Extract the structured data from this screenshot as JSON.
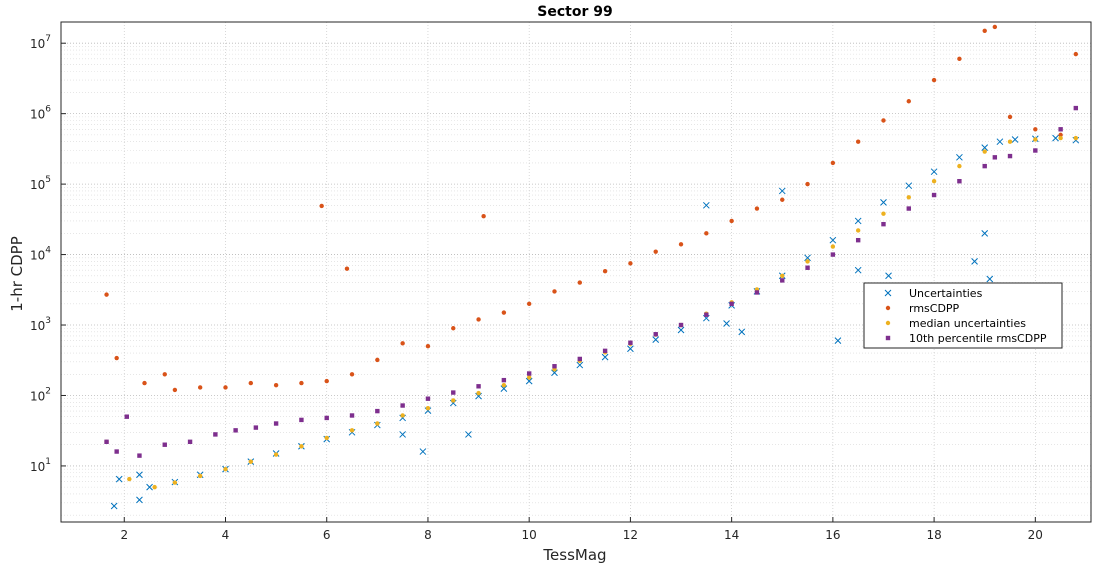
{
  "chart_data": {
    "type": "scatter",
    "title": "Sector 99",
    "xlabel": "TessMag",
    "ylabel": "1-hr CDPP",
    "xlim": [
      0.75,
      21.1
    ],
    "ylim": [
      1.6,
      20000000
    ],
    "yscale": "log",
    "grid": true,
    "minor_grid": true,
    "legend_position": "right",
    "x_ticks": [
      2,
      4,
      6,
      8,
      10,
      12,
      14,
      16,
      18,
      20
    ],
    "x_tick_labels": [
      "2",
      "4",
      "6",
      "8",
      "10",
      "12",
      "14",
      "16",
      "18",
      "20"
    ],
    "y_ticks": [
      10,
      100,
      1000,
      10000,
      100000,
      1000000,
      10000000
    ],
    "y_tick_labels": [
      {
        "base": "10",
        "exp": "1"
      },
      {
        "base": "10",
        "exp": "2"
      },
      {
        "base": "10",
        "exp": "3"
      },
      {
        "base": "10",
        "exp": "4"
      },
      {
        "base": "10",
        "exp": "5"
      },
      {
        "base": "10",
        "exp": "6"
      },
      {
        "base": "10",
        "exp": "7"
      }
    ],
    "series": [
      {
        "name": "Uncertainties",
        "marker": "x",
        "color": "#0072BD",
        "x": [
          1.8,
          1.9,
          2.3,
          2.5,
          3.0,
          3.5,
          4.0,
          4.5,
          5.0,
          5.5,
          6.0,
          6.5,
          7.0,
          7.5,
          8.0,
          8.5,
          9.0,
          9.5,
          10.0,
          10.5,
          11.0,
          11.5,
          12.0,
          12.5,
          13.0,
          13.5,
          14.0,
          14.5,
          15.0,
          15.5,
          16.0,
          16.5,
          17.0,
          17.5,
          18.0,
          18.5,
          19.0,
          19.3,
          19.6,
          20.0,
          20.4,
          20.8,
          2.3,
          7.5,
          7.9,
          8.8,
          13.9,
          14.2,
          16.1,
          16.5,
          17.1,
          18.8,
          19.0,
          19.1,
          13.5,
          15.0
        ],
        "y": [
          2.7,
          6.5,
          3.3,
          5.0,
          5.9,
          7.5,
          9.0,
          11.5,
          15,
          19,
          24,
          30,
          38,
          48,
          61,
          78,
          98,
          125,
          160,
          210,
          270,
          350,
          460,
          620,
          850,
          1250,
          1900,
          3000,
          5000,
          9000,
          16000,
          30000,
          55000,
          95000,
          150000,
          240000,
          330000,
          400000,
          430000,
          440000,
          450000,
          420000,
          7.5,
          28,
          16,
          28,
          1050,
          800,
          600,
          6000,
          5000,
          8000,
          20000,
          4500,
          50000,
          80000
        ]
      },
      {
        "name": "rmsCDPP",
        "marker": "dot",
        "color": "#D95319",
        "x": [
          1.65,
          1.85,
          2.4,
          2.8,
          3.0,
          3.5,
          4.0,
          4.5,
          5.0,
          5.5,
          5.9,
          6.0,
          6.4,
          6.5,
          7.0,
          7.5,
          8.0,
          8.5,
          9.0,
          9.1,
          9.5,
          10.0,
          10.5,
          11.0,
          11.5,
          12.0,
          12.5,
          13.0,
          13.5,
          14.0,
          14.5,
          15.0,
          15.5,
          16.0,
          16.5,
          17.0,
          17.5,
          18.0,
          18.5,
          19.0,
          19.2,
          19.5,
          20.0,
          20.5,
          20.8
        ],
        "y": [
          2700,
          340,
          150,
          200,
          120,
          130,
          130,
          150,
          140,
          150,
          49000,
          160,
          6300,
          200,
          320,
          550,
          500,
          900,
          1200,
          35000,
          1500,
          2000,
          3000,
          4000,
          5800,
          7500,
          11000,
          14000,
          20000,
          30000,
          45000,
          60000,
          100000,
          200000,
          400000,
          800000,
          1500000,
          3000000,
          6000000,
          15000000,
          17000000,
          900000,
          600000,
          500000,
          7000000
        ]
      },
      {
        "name": "median uncertainties",
        "marker": "dot",
        "color": "#EDB120",
        "x": [
          1.65,
          2.1,
          2.6,
          3.0,
          3.5,
          4.0,
          4.5,
          5.0,
          5.5,
          6.0,
          6.5,
          7.0,
          7.5,
          8.0,
          8.5,
          9.0,
          9.5,
          10.0,
          10.5,
          11.0,
          11.5,
          12.0,
          12.5,
          13.0,
          13.5,
          14.0,
          14.5,
          15.0,
          15.5,
          16.0,
          16.5,
          17.0,
          17.5,
          18.0,
          18.5,
          19.0,
          19.5,
          20.0,
          20.5,
          20.8
        ],
        "y": [
          22,
          6.5,
          5.0,
          5.8,
          7.2,
          9.0,
          11.5,
          14.5,
          19,
          25,
          32,
          40,
          52,
          66,
          85,
          108,
          140,
          180,
          235,
          310,
          410,
          540,
          730,
          1000,
          1450,
          2100,
          3200,
          5000,
          8000,
          13000,
          22000,
          38000,
          65000,
          110000,
          180000,
          290000,
          400000,
          430000,
          450000,
          450000
        ]
      },
      {
        "name": "10th percentile rmsCDPP",
        "marker": "square",
        "color": "#7E2F8E",
        "x": [
          1.65,
          1.85,
          2.05,
          2.3,
          2.8,
          3.3,
          3.8,
          4.2,
          4.6,
          5.0,
          5.5,
          6.0,
          6.5,
          7.0,
          7.5,
          8.0,
          8.5,
          9.0,
          9.5,
          10.0,
          10.5,
          11.0,
          11.5,
          12.0,
          12.5,
          13.0,
          13.5,
          14.0,
          14.5,
          15.0,
          15.5,
          16.0,
          16.5,
          17.0,
          17.5,
          18.0,
          18.5,
          19.0,
          19.2,
          19.5,
          20.0,
          20.5,
          20.8
        ],
        "y": [
          22,
          16,
          50,
          14,
          20,
          22,
          28,
          32,
          35,
          40,
          45,
          48,
          52,
          60,
          72,
          90,
          110,
          135,
          165,
          205,
          260,
          330,
          430,
          560,
          740,
          1000,
          1400,
          2000,
          2900,
          4300,
          6500,
          10000,
          16000,
          27000,
          45000,
          70000,
          110000,
          180000,
          240000,
          250000,
          300000,
          600000,
          1200000
        ]
      }
    ]
  }
}
